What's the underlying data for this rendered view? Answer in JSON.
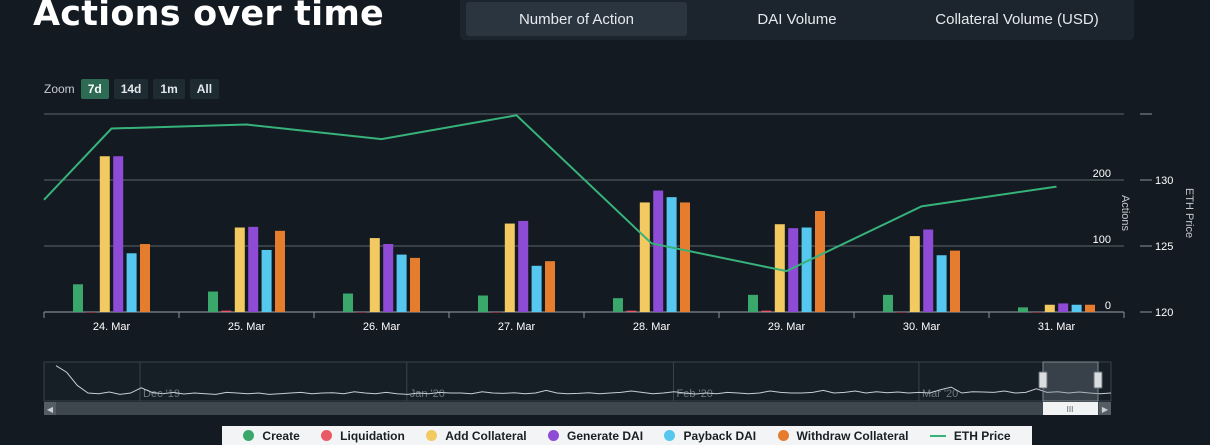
{
  "header": {
    "title": "Actions over time",
    "tabs": [
      "Number of Action",
      "DAI Volume",
      "Collateral Volume (USD)"
    ]
  },
  "zoom": {
    "label": "Zoom",
    "options": [
      "7d",
      "14d",
      "1m",
      "All"
    ],
    "selected": "7d"
  },
  "colors": {
    "create": "#3aa86b",
    "liquidation": "#e95a65",
    "add_collateral": "#f3c961",
    "generate_dai": "#8e4bd6",
    "payback_dai": "#56c7ee",
    "withdraw_collateral": "#e67c2e",
    "eth_price": "#36b27a",
    "background": "#131a22"
  },
  "chart_data": {
    "type": "bar",
    "categories": [
      "24. Mar",
      "25. Mar",
      "26. Mar",
      "27. Mar",
      "28. Mar",
      "29. Mar",
      "30. Mar",
      "31. Mar"
    ],
    "series": [
      {
        "name": "Create",
        "color": "#3aa86b",
        "values": [
          42,
          31,
          28,
          25,
          21,
          26,
          26,
          7
        ]
      },
      {
        "name": "Liquidation",
        "color": "#e95a65",
        "values": [
          0,
          2,
          0,
          0,
          2,
          2,
          0,
          0
        ]
      },
      {
        "name": "Add Collateral",
        "color": "#f3c961",
        "values": [
          236,
          128,
          112,
          134,
          166,
          133,
          115,
          11
        ]
      },
      {
        "name": "Generate DAI",
        "color": "#8e4bd6",
        "values": [
          236,
          129,
          103,
          138,
          184,
          127,
          125,
          13
        ]
      },
      {
        "name": "Payback DAI",
        "color": "#56c7ee",
        "values": [
          89,
          94,
          87,
          70,
          174,
          128,
          86,
          11
        ]
      },
      {
        "name": "Withdraw Collateral",
        "color": "#e67c2e",
        "values": [
          103,
          123,
          82,
          77,
          166,
          153,
          93,
          11
        ]
      }
    ],
    "line_series": {
      "name": "ETH Price",
      "color": "#36b27a",
      "x": [
        -0.5,
        0,
        1,
        2,
        3,
        4,
        5,
        6,
        7
      ],
      "values": [
        128.5,
        133.9,
        134.2,
        133.1,
        134.9,
        125.2,
        123.1,
        128.0,
        129.5
      ]
    },
    "y_axis_left": {
      "label": "Actions",
      "ticks": [
        "0",
        "100",
        "200"
      ],
      "range": [
        0,
        300
      ]
    },
    "y_axis_right": {
      "label": "ETH Price",
      "ticks": [
        "120",
        "125",
        "130"
      ],
      "range": [
        120,
        135
      ]
    },
    "grid": true,
    "legend_position": "bottom"
  },
  "navigator": {
    "labels": [
      "Dec '19",
      "Jan '20",
      "Feb '20",
      "Mar '20"
    ],
    "label_pos": [
      0.09,
      0.34,
      0.59,
      0.82
    ],
    "selection": [
      0.965,
      1.0
    ],
    "profile": [
      0.95,
      0.75,
      0.35,
      0.12,
      0.1,
      0.15,
      0.08,
      0.12,
      0.28,
      0.14,
      0.1,
      0.14,
      0.09,
      0.12,
      0.1,
      0.08,
      0.14,
      0.12,
      0.1,
      0.12,
      0.08,
      0.1,
      0.12,
      0.14,
      0.1,
      0.12,
      0.13,
      0.1,
      0.16,
      0.12,
      0.1,
      0.14,
      0.1,
      0.08,
      0.12,
      0.1,
      0.14,
      0.12,
      0.12,
      0.1,
      0.16,
      0.12,
      0.11,
      0.13,
      0.1,
      0.12,
      0.2,
      0.12,
      0.1,
      0.11,
      0.13,
      0.1,
      0.12,
      0.14,
      0.18,
      0.14,
      0.1,
      0.12,
      0.16,
      0.12,
      0.09,
      0.12,
      0.1,
      0.14,
      0.12,
      0.1,
      0.12,
      0.18,
      0.14,
      0.12,
      0.12,
      0.14,
      0.2,
      0.12,
      0.14,
      0.18,
      0.12,
      0.16,
      0.13,
      0.15,
      0.12,
      0.14,
      0.12,
      0.22,
      0.3,
      0.12,
      0.16,
      0.15,
      0.14,
      0.18,
      0.12,
      0.14,
      0.25,
      0.14,
      0.16,
      0.12,
      0.15,
      0.12,
      0.1,
      0.12
    ]
  },
  "scrollbar_grip": "III"
}
